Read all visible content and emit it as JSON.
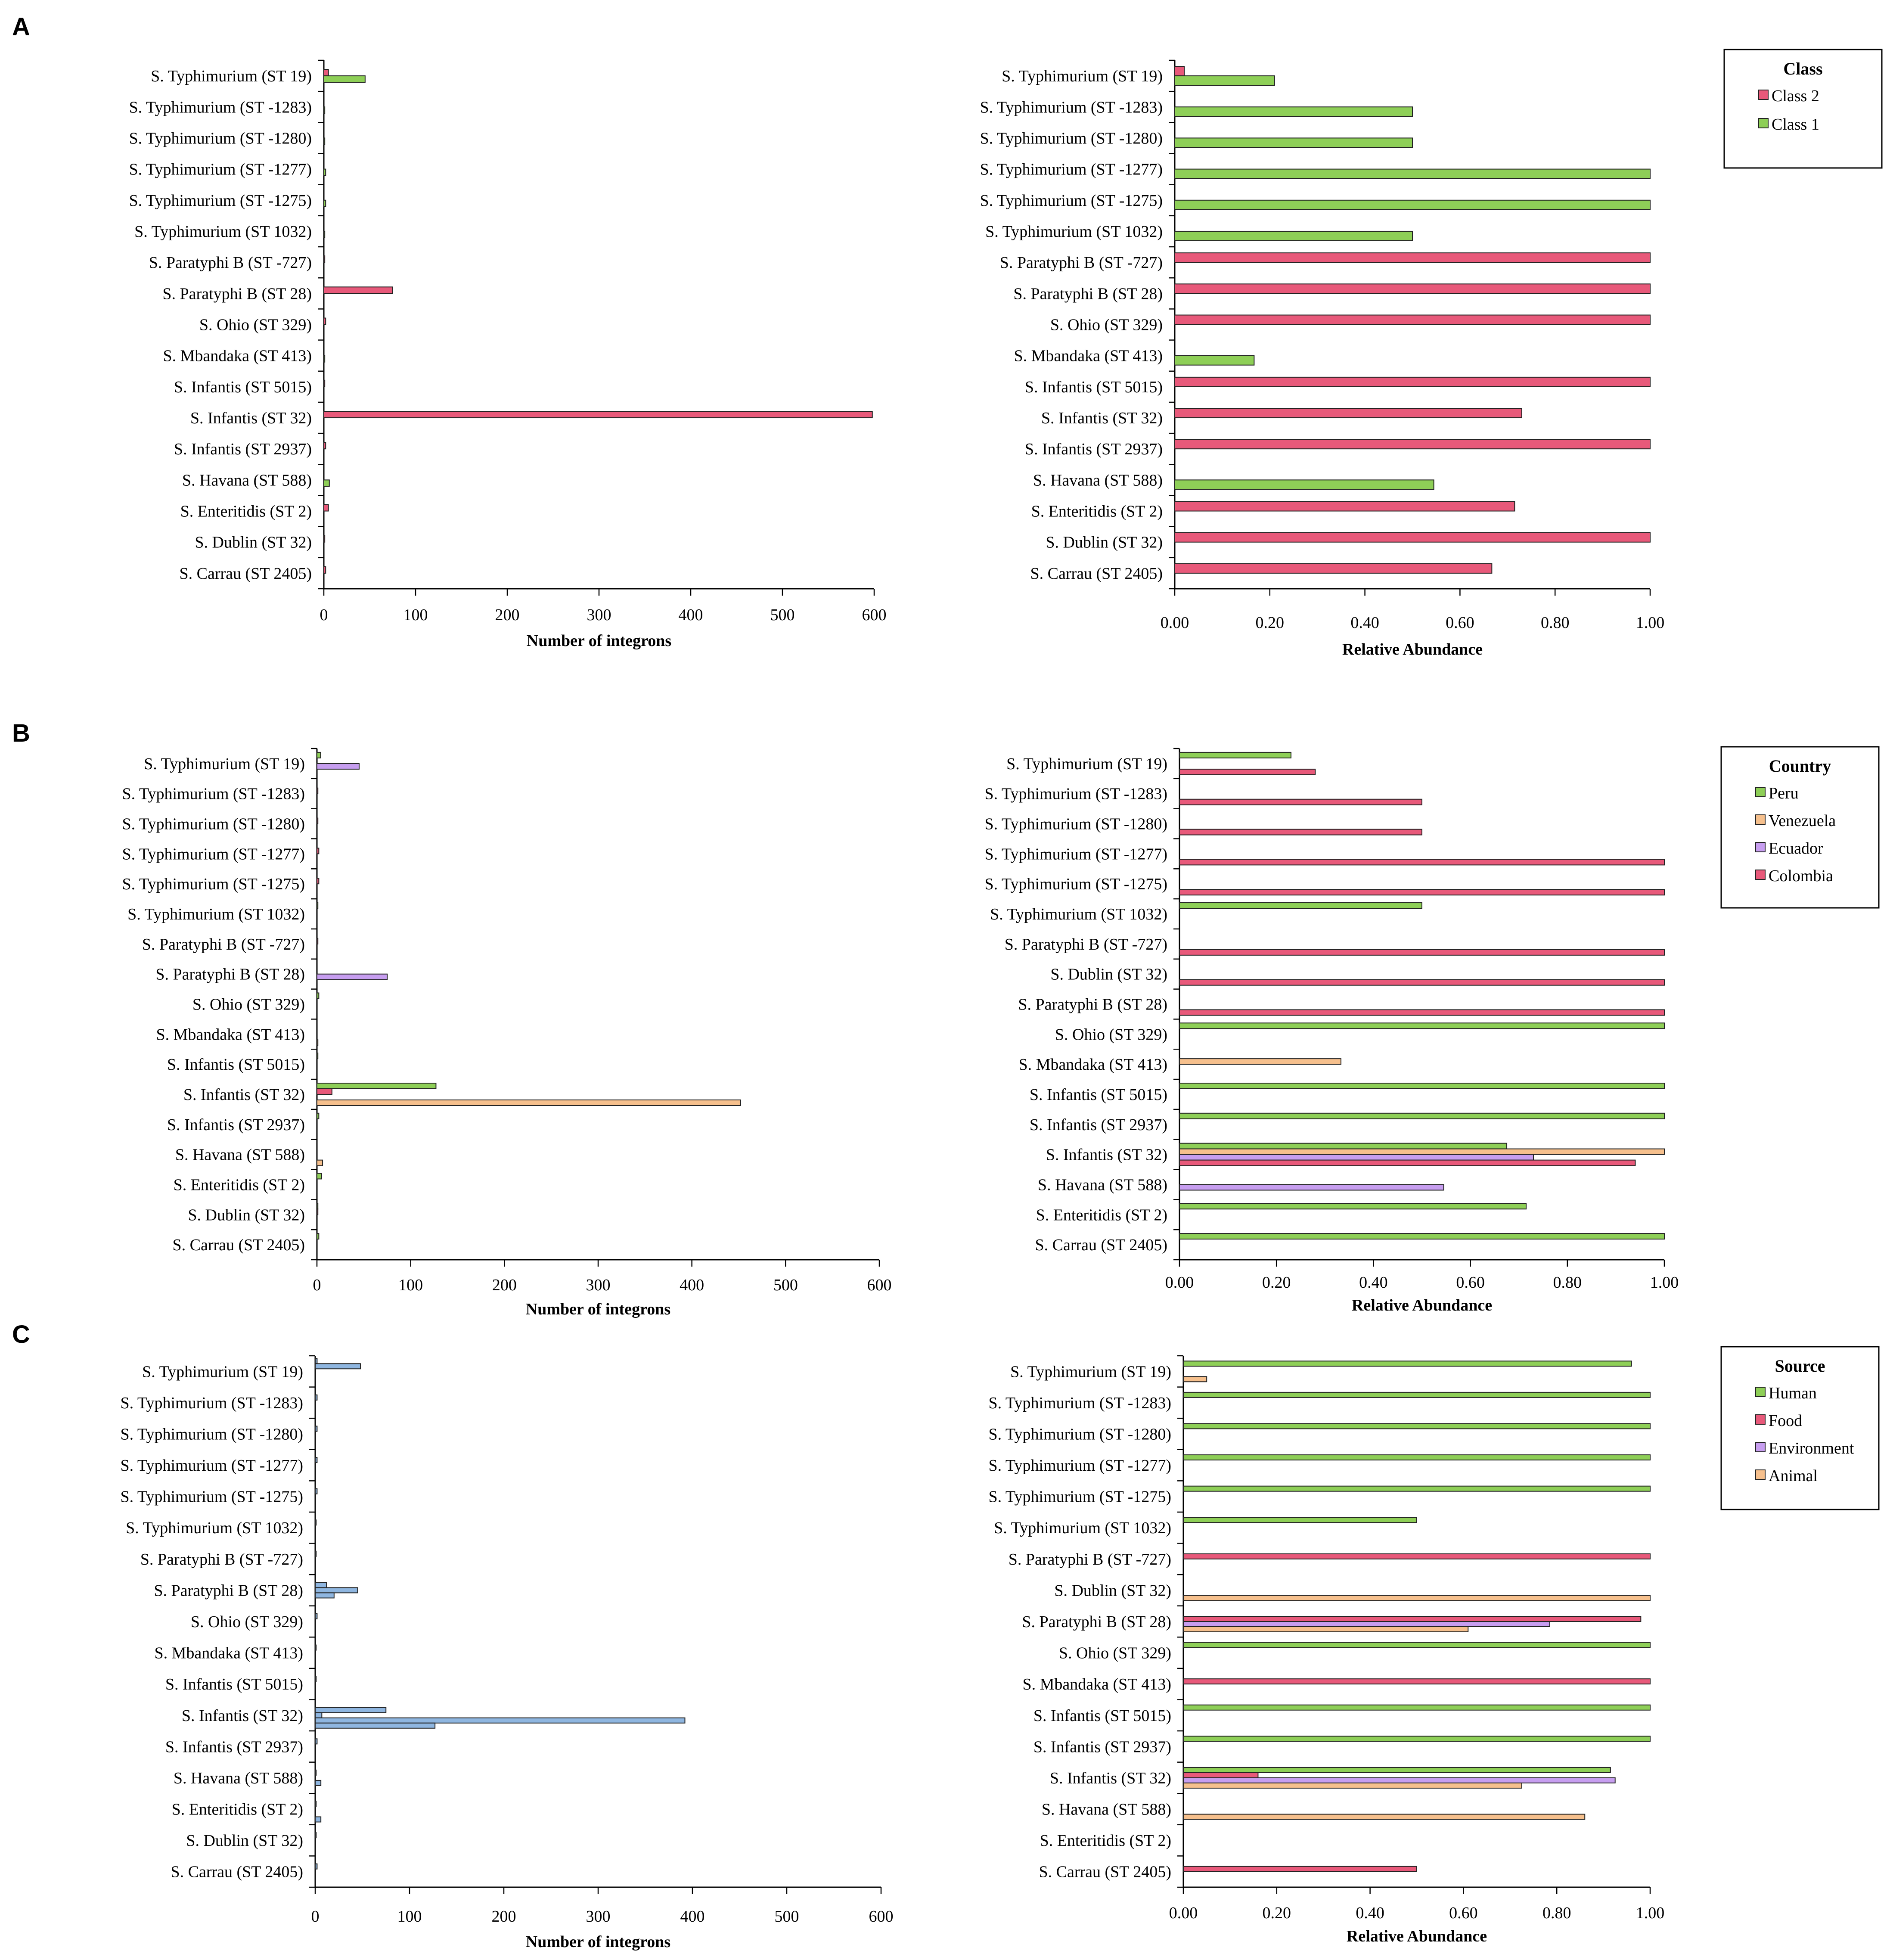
{
  "colors": {
    "class2": "#e8597a",
    "class1": "#8ecf57",
    "peru": "#8ecf57",
    "venezuela": "#f6c08d",
    "ecuador": "#c79ef0",
    "colombia": "#e8597a",
    "human": "#8ecf57",
    "food": "#e8597a",
    "environment": "#c79ef0",
    "animal": "#f6c08d",
    "sequence_type": "#8fb6e0"
  },
  "panels": [
    {
      "letter": "A",
      "legend": {
        "title": "Class",
        "items": [
          {
            "label": "Class 2",
            "color": "#e8597a"
          },
          {
            "label": "Class 1",
            "color": "#8ecf57"
          }
        ]
      },
      "left_chart": {
        "type": "bar",
        "orientation": "horizontal",
        "xlabel": "Number of integrons",
        "xlim": [
          0,
          600
        ],
        "xticks": [
          "0",
          "100",
          "200",
          "300",
          "400",
          "500",
          "600"
        ],
        "categories": [
          "S. Typhimurium (ST 19)",
          "S. Typhimurium (ST -1283)",
          "S. Typhimurium (ST -1280)",
          "S. Typhimurium (ST -1277)",
          "S. Typhimurium (ST -1275)",
          "S. Typhimurium (ST 1032)",
          "S. Paratyphi B (ST -727)",
          "S. Paratyphi B (ST 28)",
          "S. Ohio (ST 329)",
          "S. Mbandaka (ST 413)",
          "S. Infantis (ST 5015)",
          "S. Infantis (ST 32)",
          "S. Infantis (ST 2937)",
          "S. Havana (ST 588)",
          "S. Enteritidis (ST 2)",
          "S. Dublin (ST 32)",
          "S. Carrau (ST 2405)"
        ],
        "series": [
          {
            "name": "Class 2",
            "color": "#e8597a",
            "values": [
              5,
              0,
              0,
              0,
              0,
              0,
              1,
              75,
              2,
              0,
              1,
              598,
              2,
              0,
              5,
              1,
              2
            ]
          },
          {
            "name": "Class 1",
            "color": "#8ecf57",
            "values": [
              45,
              1,
              1,
              2,
              2,
              1,
              0,
              0,
              0,
              1,
              0,
              0,
              0,
              6,
              0,
              0,
              0
            ]
          }
        ]
      },
      "right_chart": {
        "type": "bar",
        "orientation": "horizontal",
        "xlabel": "Relative Abundance",
        "xlim": [
          0,
          1
        ],
        "xticks": [
          "0.00",
          "0.20",
          "0.40",
          "0.60",
          "0.80",
          "1.00"
        ],
        "categories": [
          "S. Typhimurium (ST 19)",
          "S. Typhimurium (ST -1283)",
          "S. Typhimurium (ST -1280)",
          "S. Typhimurium (ST -1277)",
          "S. Typhimurium (ST -1275)",
          "S. Typhimurium (ST 1032)",
          "S. Paratyphi B (ST -727)",
          "S. Paratyphi B (ST 28)",
          "S. Ohio (ST 329)",
          "S. Mbandaka (ST 413)",
          "S. Infantis (ST 5015)",
          "S. Infantis (ST 32)",
          "S. Infantis (ST 2937)",
          "S. Havana (ST 588)",
          "S. Enteritidis (ST 2)",
          "S. Dublin (ST 32)",
          "S. Carrau (ST 2405)"
        ],
        "series": [
          {
            "name": "Class 2",
            "color": "#e8597a",
            "values": [
              0.02,
              0,
              0,
              0,
              0,
              0,
              1.0,
              1.0,
              1.0,
              0,
              1.0,
              0.73,
              1.0,
              0,
              0.715,
              1.0,
              0.667
            ]
          },
          {
            "name": "Class 1",
            "color": "#8ecf57",
            "values": [
              0.21,
              0.5,
              0.5,
              1.0,
              1.0,
              0.5,
              0,
              0,
              0,
              0.167,
              0,
              0,
              0,
              0.545,
              0,
              0,
              0
            ]
          }
        ]
      }
    },
    {
      "letter": "B",
      "legend": {
        "title": "Country",
        "items": [
          {
            "label": "Peru",
            "color": "#8ecf57"
          },
          {
            "label": "Venezuela",
            "color": "#f6c08d"
          },
          {
            "label": "Ecuador",
            "color": "#c79ef0"
          },
          {
            "label": "Colombia",
            "color": "#e8597a"
          }
        ]
      },
      "left_chart": {
        "type": "bar",
        "orientation": "horizontal",
        "xlabel": "Number of integrons",
        "xlim": [
          0,
          600
        ],
        "xticks": [
          "0",
          "100",
          "200",
          "300",
          "400",
          "500",
          "600"
        ],
        "categories": [
          "S. Typhimurium (ST 19)",
          "S. Typhimurium (ST -1283)",
          "S. Typhimurium (ST -1280)",
          "S. Typhimurium (ST -1277)",
          "S. Typhimurium (ST -1275)",
          "S. Typhimurium (ST 1032)",
          "S. Paratyphi B (ST -727)",
          "S. Paratyphi B (ST 28)",
          "S. Ohio (ST 329)",
          "S. Mbandaka (ST 413)",
          "S. Infantis (ST 5015)",
          "S. Infantis (ST 32)",
          "S. Infantis (ST 2937)",
          "S. Havana (ST 588)",
          "S. Enteritidis (ST 2)",
          "S. Dublin (ST 32)",
          "S. Carrau (ST 2405)"
        ],
        "series": [
          {
            "name": "Peru",
            "color": "#8ecf57",
            "values": [
              4,
              0,
              0,
              0,
              0,
              1,
              0,
              0,
              2,
              0,
              1,
              127,
              2,
              0,
              5,
              1,
              2
            ]
          },
          {
            "name": "Colombia",
            "color": "#e8597a",
            "values": [
              0,
              1,
              1,
              2,
              2,
              0,
              1,
              0,
              0,
              0,
              0,
              16,
              0,
              0,
              0,
              1,
              0
            ]
          },
          {
            "name": "Ecuador",
            "color": "#c79ef0",
            "values": [
              45,
              0,
              0,
              0,
              0,
              0,
              0,
              75,
              0,
              0,
              0,
              0,
              0,
              0,
              0,
              0,
              0
            ]
          },
          {
            "name": "Venezuela",
            "color": "#f6c08d",
            "values": [
              0,
              0,
              0,
              0,
              0,
              0,
              0,
              0,
              0,
              1,
              0,
              452,
              0,
              6,
              0,
              0,
              0
            ]
          }
        ]
      },
      "right_chart": {
        "type": "bar",
        "orientation": "horizontal",
        "xlabel": "Relative Abundance",
        "xlim": [
          0,
          1
        ],
        "xticks": [
          "0.00",
          "0.20",
          "0.40",
          "0.60",
          "0.80",
          "1.00"
        ],
        "categories": [
          "S. Typhimurium (ST 19)",
          "S. Typhimurium (ST -1283)",
          "S. Typhimurium (ST -1280)",
          "S. Typhimurium (ST -1277)",
          "S. Typhimurium (ST -1275)",
          "S. Typhimurium (ST 1032)",
          "S. Paratyphi B (ST -727)",
          "S. Dublin (ST 32)",
          "S. Paratyphi B (ST 28)",
          "S. Ohio (ST 329)",
          "S. Mbandaka (ST 413)",
          "S. Infantis (ST 5015)",
          "S. Infantis (ST 2937)",
          "S. Infantis (ST 32)",
          "S. Havana (ST 588)",
          "S. Enteritidis (ST 2)",
          "S. Carrau (ST 2405)"
        ],
        "series": [
          {
            "name": "Peru",
            "color": "#8ecf57",
            "values": [
              0.23,
              0,
              0,
              0,
              0,
              0.5,
              0,
              0,
              0,
              1.0,
              0,
              1.0,
              1.0,
              0.675,
              0,
              0.715,
              1.0
            ]
          },
          {
            "name": "Venezuela",
            "color": "#f6c08d",
            "values": [
              0,
              0,
              0,
              0,
              0,
              0,
              0,
              0,
              0,
              0,
              0.333,
              0,
              0,
              1.0,
              0,
              0,
              0
            ]
          },
          {
            "name": "Ecuador",
            "color": "#c79ef0",
            "values": [
              0,
              0,
              0,
              0,
              0,
              0,
              0,
              0,
              0,
              0,
              0,
              0,
              0,
              0.73,
              0.545,
              0,
              0
            ]
          },
          {
            "name": "Colombia",
            "color": "#e8597a",
            "values": [
              0.28,
              0.5,
              0.5,
              1.0,
              1.0,
              0,
              1.0,
              1.0,
              1.0,
              0,
              0,
              0,
              0,
              0.94,
              0,
              0,
              0
            ]
          }
        ]
      }
    },
    {
      "letter": "C",
      "legend": {
        "title": "Source",
        "items": [
          {
            "label": "Human",
            "color": "#8ecf57"
          },
          {
            "label": "Food",
            "color": "#e8597a"
          },
          {
            "label": "Environment",
            "color": "#c79ef0"
          },
          {
            "label": "Animal",
            "color": "#f6c08d"
          }
        ]
      },
      "left_chart": {
        "type": "bar",
        "orientation": "horizontal",
        "xlabel": "Number of integrons",
        "xlim": [
          0,
          600
        ],
        "xticks": [
          "0",
          "100",
          "200",
          "300",
          "400",
          "500",
          "600"
        ],
        "categories": [
          "S. Typhimurium (ST 19)",
          "S. Typhimurium (ST -1283)",
          "S. Typhimurium (ST -1280)",
          "S. Typhimurium (ST -1277)",
          "S. Typhimurium (ST -1275)",
          "S. Typhimurium (ST 1032)",
          "S. Paratyphi B (ST -727)",
          "S. Paratyphi B (ST 28)",
          "S. Ohio (ST 329)",
          "S. Mbandaka (ST 413)",
          "S. Infantis (ST 5015)",
          "S. Infantis (ST 32)",
          "S. Infantis (ST 2937)",
          "S. Havana (ST 588)",
          "S. Enteritidis (ST 2)",
          "S. Dublin (ST 32)",
          "S. Carrau (ST 2405)"
        ],
        "series": [
          {
            "values": [
              2,
              0,
              0,
              0,
              0,
              0,
              0,
              0,
              0,
              0,
              0,
              0,
              0,
              0,
              0,
              0,
              0
            ]
          },
          {
            "values": [
              48,
              2,
              2,
              2,
              2,
              1,
              1,
              12,
              2,
              1,
              1,
              75,
              2,
              1,
              1,
              1,
              2
            ]
          },
          {
            "values": [
              0,
              0,
              0,
              0,
              0,
              0,
              0,
              45,
              0,
              0,
              0,
              7,
              0,
              0,
              0,
              0,
              0
            ]
          },
          {
            "values": [
              0,
              0,
              0,
              0,
              0,
              0,
              0,
              20,
              0,
              0,
              0,
              392,
              0,
              6,
              0,
              0,
              0
            ]
          },
          {
            "values": [
              0,
              0,
              0,
              0,
              0,
              0,
              0,
              0,
              0,
              0,
              0,
              127,
              0,
              0,
              6,
              0,
              0
            ]
          }
        ]
      },
      "right_chart": {
        "type": "bar",
        "orientation": "horizontal",
        "xlabel": "Relative Abundance",
        "xlim": [
          0,
          1
        ],
        "xticks": [
          "0.00",
          "0.20",
          "0.40",
          "0.60",
          "0.80",
          "1.00"
        ],
        "categories": [
          "S. Typhimurium (ST 19)",
          "S. Typhimurium (ST -1283)",
          "S. Typhimurium (ST -1280)",
          "S. Typhimurium (ST -1277)",
          "S. Typhimurium (ST -1275)",
          "S. Typhimurium (ST 1032)",
          "S. Paratyphi B (ST -727)",
          "S. Dublin (ST 32)",
          "S. Paratyphi B (ST 28)",
          "S. Ohio (ST 329)",
          "S. Mbandaka (ST 413)",
          "S. Infantis (ST 5015)",
          "S. Infantis (ST 2937)",
          "S. Infantis (ST 32)",
          "S. Havana (ST 588)",
          "S. Enteritidis (ST 2)",
          "S. Carrau (ST 2405)"
        ],
        "series": [
          {
            "name": "Human",
            "color": "#8ecf57",
            "values": [
              0.96,
              1.0,
              1.0,
              1.0,
              1.0,
              0.5,
              0,
              0,
              0,
              1.0,
              0,
              1.0,
              1.0,
              0.915,
              0,
              0,
              0
            ]
          },
          {
            "name": "Food",
            "color": "#e8597a",
            "values": [
              0,
              0,
              0,
              0,
              0,
              0,
              1.0,
              0,
              0.98,
              0,
              1.0,
              0,
              0,
              0.16,
              0,
              0,
              0.5
            ]
          },
          {
            "name": "Environment",
            "color": "#c79ef0",
            "values": [
              0,
              0,
              0,
              0,
              0,
              0,
              0,
              0,
              0.785,
              0,
              0,
              0,
              0,
              0.925,
              0,
              0,
              0
            ]
          },
          {
            "name": "Animal",
            "color": "#f6c08d",
            "values": [
              0.05,
              0,
              0,
              0,
              0,
              0,
              0,
              1.0,
              0.61,
              0,
              0,
              0,
              0,
              0.725,
              0.86,
              0,
              0
            ]
          }
        ]
      }
    }
  ]
}
